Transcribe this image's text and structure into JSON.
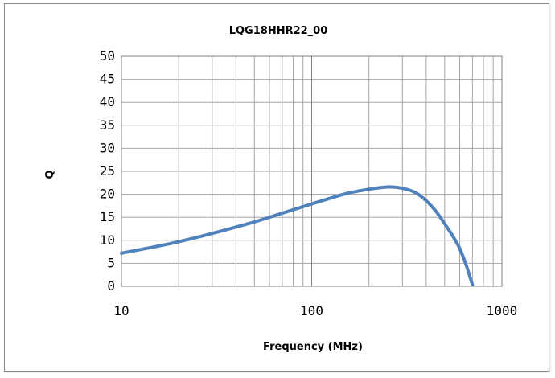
{
  "chart_data": {
    "type": "line",
    "title": "LQG18HHR22_00",
    "xlabel": "Frequency (MHz)",
    "ylabel": "Q",
    "xscale": "log",
    "xlim": [
      10,
      1000
    ],
    "ylim": [
      0,
      50
    ],
    "x_ticks": [
      "10",
      "100",
      "1000"
    ],
    "y_ticks": [
      "0",
      "5",
      "10",
      "15",
      "20",
      "25",
      "30",
      "35",
      "40",
      "45",
      "50"
    ],
    "grid": true,
    "legend": "none",
    "colors": {
      "line": "#4f81bd",
      "grid": "#a6a6a6"
    },
    "series": [
      {
        "x": [
          10,
          15,
          20,
          30,
          50,
          70,
          100,
          150,
          200,
          250,
          300,
          350,
          400,
          450,
          500,
          550,
          600,
          650,
          700
        ],
        "y": [
          7.2,
          8.6,
          9.7,
          11.5,
          14.0,
          15.9,
          17.9,
          20.1,
          21.1,
          21.6,
          21.3,
          20.4,
          18.6,
          16.3,
          13.6,
          11.0,
          8.2,
          4.5,
          0.3
        ]
      }
    ]
  }
}
